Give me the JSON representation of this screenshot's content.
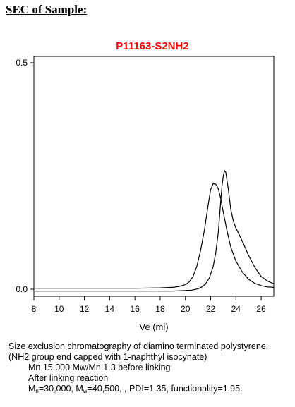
{
  "heading": "SEC of Sample:",
  "chart_data": {
    "type": "line",
    "title": "P11163-S2NH2",
    "title_color": "#ff0000",
    "xlabel": "Ve (ml)",
    "ylabel": "",
    "xlim": [
      8,
      27
    ],
    "ylim": [
      0.0,
      0.5
    ],
    "x_ticks": [
      8,
      10,
      12,
      14,
      16,
      18,
      20,
      22,
      24,
      26
    ],
    "y_ticks": [
      0.0,
      0.5
    ],
    "y_tick_labels": [
      "0.0",
      "0.5"
    ],
    "grid": false,
    "series": [
      {
        "color": "#000000",
        "x": [
          8,
          10,
          12,
          14,
          16,
          18,
          19,
          19.5,
          20,
          20.3,
          20.6,
          20.9,
          21.2,
          21.5,
          21.8,
          22.0,
          22.2,
          22.4,
          22.6,
          22.8,
          23.0,
          23.3,
          23.6,
          24.0,
          24.5,
          25.0,
          25.5,
          26.0,
          26.5,
          27.0
        ],
        "y": [
          0.002,
          0.002,
          0.002,
          0.002,
          0.002,
          0.003,
          0.004,
          0.006,
          0.01,
          0.016,
          0.028,
          0.05,
          0.085,
          0.13,
          0.185,
          0.22,
          0.233,
          0.232,
          0.222,
          0.2,
          0.17,
          0.128,
          0.092,
          0.062,
          0.038,
          0.022,
          0.013,
          0.008,
          0.005,
          0.004
        ]
      },
      {
        "color": "#000000",
        "x": [
          8,
          10,
          12,
          14,
          16,
          18,
          19,
          20,
          20.5,
          21.0,
          21.3,
          21.6,
          21.9,
          22.2,
          22.4,
          22.6,
          22.7,
          22.8,
          22.9,
          23.0,
          23.1,
          23.2,
          23.4,
          23.6,
          23.8,
          24.0,
          24.3,
          24.6,
          25.0,
          25.5,
          26.0,
          26.5,
          27.0
        ],
        "y": [
          -0.004,
          -0.004,
          -0.004,
          -0.004,
          -0.004,
          -0.004,
          -0.004,
          -0.003,
          -0.002,
          0.001,
          0.005,
          0.012,
          0.025,
          0.05,
          0.08,
          0.125,
          0.16,
          0.195,
          0.228,
          0.25,
          0.262,
          0.258,
          0.22,
          0.175,
          0.15,
          0.135,
          0.118,
          0.1,
          0.075,
          0.048,
          0.028,
          0.018,
          0.012
        ]
      }
    ]
  },
  "caption": {
    "line1": "Size exclusion chromatography of  diamino terminated polystyrene.",
    "line2": "(NH2 group end capped with 1-naphthyl isocynate)",
    "line3": "Mn 15,000 Mw/Mn 1.3 before linking",
    "line4": "After linking reaction",
    "line5": {
      "mn_symbol": "M",
      "mn_sub": "n",
      "mn_value": "=30,000, ",
      "mw_symbol": "M",
      "mw_sub": "w",
      "mw_value": "=40,500, , PDI=1.35, functionality=1.95."
    }
  }
}
